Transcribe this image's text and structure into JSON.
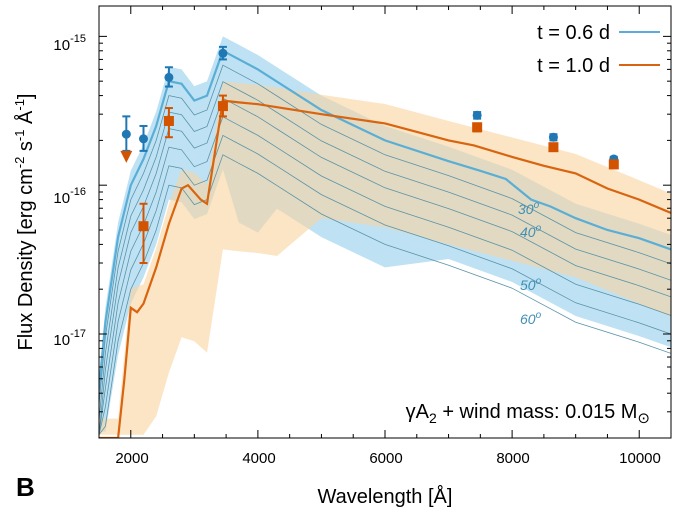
{
  "chart_data": {
    "type": "line",
    "panel_label": "B",
    "xlabel": "Wavelength [Å]",
    "ylabel": {
      "main": "Flux Density [erg cm",
      "e1": "-2",
      "mid": " s",
      "e2": "-1",
      "mid2": " Å",
      "e3": "-1",
      "end": "]"
    },
    "xlim": [
      1500,
      10500
    ],
    "ylim": [
      2e-18,
      1.6e-15
    ],
    "x_ticks": [
      2000,
      4000,
      6000,
      8000,
      10000
    ],
    "x_tick_labels": [
      "2000",
      "4000",
      "6000",
      "8000",
      "10000"
    ],
    "y_ticks": [
      1e-17,
      1e-16,
      1e-15
    ],
    "y_tick_labels": [
      {
        "base": "10",
        "exp": "-17"
      },
      {
        "base": "10",
        "exp": "-16"
      },
      {
        "base": "10",
        "exp": "-15"
      }
    ],
    "annotation": {
      "pre": "γA",
      "sub": "2",
      "mid": " + wind mass: 0.015 M",
      "sym": "⊙"
    },
    "colors": {
      "blue": "#3f9fcf",
      "orange": "#d9640f",
      "blue_point": "#1f77b4",
      "orange_point": "#d35400",
      "blue_band": "#a8d8f0",
      "orange_band": "#f8d49e",
      "thin_line": "#5a93a8"
    },
    "series": [
      {
        "name": "t = 0.6 d",
        "color": "#5aaed6",
        "x": [
          1500,
          1600,
          1800,
          2000,
          2200,
          2400,
          2600,
          2800,
          3000,
          3200,
          3450,
          4000,
          5000,
          6000,
          7000,
          7500,
          7900,
          8300,
          8600,
          9000,
          9500,
          10000,
          10500
        ],
        "y": [
          4.2e-18,
          1.2e-17,
          4.5e-17,
          1e-16,
          1.5e-16,
          2.5e-16,
          5e-16,
          4.8e-16,
          3.7e-16,
          4e-16,
          8e-16,
          6e-16,
          3.2e-16,
          2e-16,
          1.45e-16,
          1.25e-16,
          1.1e-16,
          8e-17,
          7.2e-17,
          6e-17,
          5e-17,
          4.4e-17,
          3.7e-17
        ]
      },
      {
        "name": "t = 1.0 d",
        "color": "#d9640f",
        "x": [
          1500,
          1800,
          1900,
          2000,
          2100,
          2200,
          2400,
          2600,
          2800,
          2900,
          3100,
          3200,
          3450,
          3700,
          4000,
          5000,
          6000,
          7000,
          7400,
          8000,
          8500,
          9000,
          9500,
          10000,
          10500
        ],
        "y": [
          2e-18,
          2e-18,
          5e-18,
          1.5e-17,
          1.4e-17,
          1.6e-17,
          2.8e-17,
          5.5e-17,
          9.5e-17,
          1e-16,
          8e-17,
          7.5e-17,
          3.7e-16,
          3.6e-16,
          3.5e-16,
          3e-16,
          2.6e-16,
          2e-16,
          1.85e-16,
          1.55e-16,
          1.35e-16,
          1.2e-16,
          9.5e-17,
          8e-17,
          6.5e-17
        ]
      }
    ],
    "angle_lines": [
      {
        "label": "30°",
        "mid": "30",
        "sup": "o"
      },
      {
        "label": "40°",
        "mid": "40",
        "sup": "o"
      },
      {
        "label": "50°",
        "mid": "50",
        "sup": "o"
      },
      {
        "label": "60°",
        "mid": "60",
        "sup": "o"
      }
    ],
    "points_blue": [
      {
        "x": 1930,
        "y": 2.2e-16,
        "ylo": 1.7e-16,
        "yhi": 2.9e-16
      },
      {
        "x": 2200,
        "y": 2.05e-16,
        "ylo": 1.7e-16,
        "yhi": 2.5e-16
      },
      {
        "x": 2600,
        "y": 5.3e-16,
        "ylo": 4.6e-16,
        "yhi": 6.2e-16
      },
      {
        "x": 3450,
        "y": 7.7e-16,
        "ylo": 7e-16,
        "yhi": 8.5e-16
      },
      {
        "x": 7450,
        "y": 2.95e-16,
        "ylo": 2.8e-16,
        "yhi": 3.1e-16
      },
      {
        "x": 8650,
        "y": 2.1e-16,
        "ylo": 2e-16,
        "yhi": 2.2e-16
      },
      {
        "x": 9600,
        "y": 1.5e-16,
        "ylo": 1.45e-16,
        "yhi": 1.55e-16
      }
    ],
    "points_orange": [
      {
        "x": 2200,
        "y": 5.3e-17,
        "ylo": 3e-17,
        "yhi": 7.5e-17
      },
      {
        "x": 2600,
        "y": 2.7e-16,
        "ylo": 2.1e-16,
        "yhi": 3.3e-16
      },
      {
        "x": 3450,
        "y": 3.4e-16,
        "ylo": 2.9e-16,
        "yhi": 4e-16
      },
      {
        "x": 7450,
        "y": 2.45e-16,
        "ylo": 2.3e-16,
        "yhi": 2.6e-16
      },
      {
        "x": 8650,
        "y": 1.8e-16,
        "ylo": 1.7e-16,
        "yhi": 1.9e-16
      },
      {
        "x": 9600,
        "y": 1.38e-16,
        "ylo": 1.3e-16,
        "yhi": 1.46e-16
      }
    ],
    "upper_limit": {
      "x": 1930,
      "y": 1.55e-16,
      "series": "t = 1.0 d"
    }
  }
}
